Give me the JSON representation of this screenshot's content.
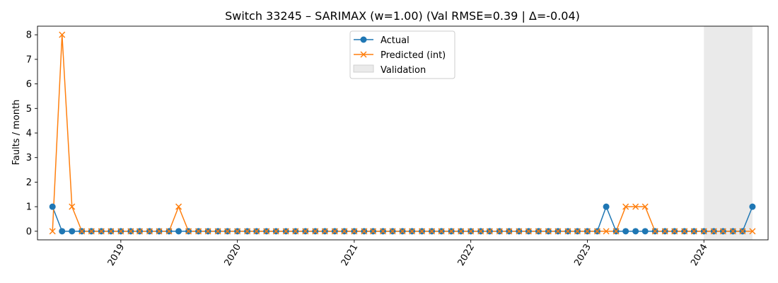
{
  "chart_data": {
    "type": "line",
    "title": "Switch 33245 – SARIMAX (w=1.00) (Val RMSE=0.39 | Δ=-0.04)",
    "xlabel": "",
    "ylabel": "Faults / month",
    "xlim": [
      "2018-04-15",
      "2024-07-20"
    ],
    "ylim": [
      -0.35,
      8.35
    ],
    "y_ticks": [
      0,
      1,
      2,
      3,
      4,
      5,
      6,
      7,
      8
    ],
    "x_ticks": [
      {
        "date": "2019-01-01",
        "label": "2019"
      },
      {
        "date": "2020-01-01",
        "label": "2020"
      },
      {
        "date": "2021-01-01",
        "label": "2021"
      },
      {
        "date": "2022-01-01",
        "label": "2022"
      },
      {
        "date": "2023-01-01",
        "label": "2023"
      },
      {
        "date": "2024-01-01",
        "label": "2024"
      }
    ],
    "grid": false,
    "legend_position": "top-center",
    "validation_span": {
      "start": "2024-01-01",
      "end": "2024-06-01",
      "label": "Validation",
      "color": "#d9d9d9"
    },
    "x": [
      "2018-06-01",
      "2018-07-01",
      "2018-08-01",
      "2018-09-01",
      "2018-10-01",
      "2018-11-01",
      "2018-12-01",
      "2019-01-01",
      "2019-02-01",
      "2019-03-01",
      "2019-04-01",
      "2019-05-01",
      "2019-06-01",
      "2019-07-01",
      "2019-08-01",
      "2019-09-01",
      "2019-10-01",
      "2019-11-01",
      "2019-12-01",
      "2020-01-01",
      "2020-02-01",
      "2020-03-01",
      "2020-04-01",
      "2020-05-01",
      "2020-06-01",
      "2020-07-01",
      "2020-08-01",
      "2020-09-01",
      "2020-10-01",
      "2020-11-01",
      "2020-12-01",
      "2021-01-01",
      "2021-02-01",
      "2021-03-01",
      "2021-04-01",
      "2021-05-01",
      "2021-06-01",
      "2021-07-01",
      "2021-08-01",
      "2021-09-01",
      "2021-10-01",
      "2021-11-01",
      "2021-12-01",
      "2022-01-01",
      "2022-02-01",
      "2022-03-01",
      "2022-04-01",
      "2022-05-01",
      "2022-06-01",
      "2022-07-01",
      "2022-08-01",
      "2022-09-01",
      "2022-10-01",
      "2022-11-01",
      "2022-12-01",
      "2023-01-01",
      "2023-02-01",
      "2023-03-01",
      "2023-04-01",
      "2023-05-01",
      "2023-06-01",
      "2023-07-01",
      "2023-08-01",
      "2023-09-01",
      "2023-10-01",
      "2023-11-01",
      "2023-12-01",
      "2024-01-01",
      "2024-02-01",
      "2024-03-01",
      "2024-04-01",
      "2024-05-01",
      "2024-06-01"
    ],
    "series": [
      {
        "name": "Actual",
        "color": "#1f77b4",
        "marker": "circle",
        "values": [
          1,
          0,
          0,
          0,
          0,
          0,
          0,
          0,
          0,
          0,
          0,
          0,
          0,
          0,
          0,
          0,
          0,
          0,
          0,
          0,
          0,
          0,
          0,
          0,
          0,
          0,
          0,
          0,
          0,
          0,
          0,
          0,
          0,
          0,
          0,
          0,
          0,
          0,
          0,
          0,
          0,
          0,
          0,
          0,
          0,
          0,
          0,
          0,
          0,
          0,
          0,
          0,
          0,
          0,
          0,
          0,
          0,
          1,
          0,
          0,
          0,
          0,
          0,
          0,
          0,
          0,
          0,
          0,
          0,
          0,
          0,
          0,
          1
        ]
      },
      {
        "name": "Predicted (int)",
        "color": "#ff7f0e",
        "marker": "x",
        "values": [
          0,
          8,
          1,
          0,
          0,
          0,
          0,
          0,
          0,
          0,
          0,
          0,
          0,
          1,
          0,
          0,
          0,
          0,
          0,
          0,
          0,
          0,
          0,
          0,
          0,
          0,
          0,
          0,
          0,
          0,
          0,
          0,
          0,
          0,
          0,
          0,
          0,
          0,
          0,
          0,
          0,
          0,
          0,
          0,
          0,
          0,
          0,
          0,
          0,
          0,
          0,
          0,
          0,
          0,
          0,
          0,
          0,
          0,
          0,
          1,
          1,
          1,
          0,
          0,
          0,
          0,
          0,
          0,
          0,
          0,
          0,
          0,
          0
        ]
      }
    ]
  }
}
